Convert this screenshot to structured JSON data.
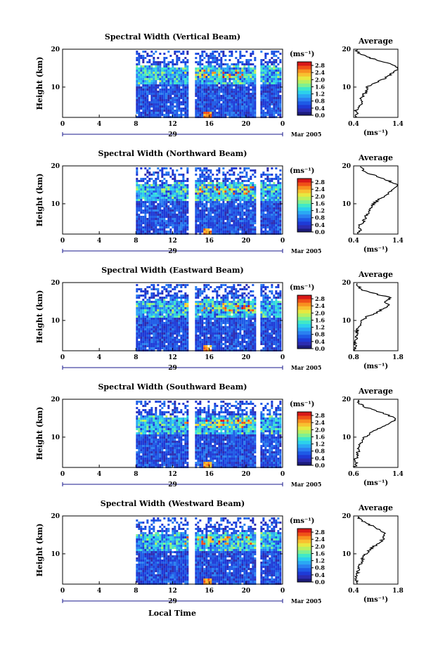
{
  "colorbar_colors": [
    "#1c1c7a",
    "#2c2cb0",
    "#1e3ad6",
    "#1e5ae6",
    "#2a80f0",
    "#2aa8f4",
    "#2cd0ec",
    "#40e8c8",
    "#80f090",
    "#b8f060",
    "#e8e840",
    "#f8c030",
    "#f89020",
    "#f05018",
    "#d81818"
  ],
  "chart_data": [
    {
      "type": "heatmap",
      "title": "Spectral Width (Vertical Beam)",
      "ylabel": "Height (km)",
      "xlabel": "",
      "x_ticks": [
        "0",
        "4",
        "8",
        "12",
        "16",
        "20",
        "0"
      ],
      "date_label": "29",
      "date_right": "Mar 2005",
      "y_ticks": [
        "20",
        "10"
      ],
      "xlim": [
        0,
        24
      ],
      "ylim": [
        2,
        20
      ],
      "data_start_hour": 8,
      "gap_hours": [
        14,
        21.2
      ],
      "colorbar": {
        "unit": "(ms⁻¹)",
        "ticks": [
          "2.8",
          "2.4",
          "2.0",
          "1.6",
          "1.2",
          "0.8",
          "0.4",
          "0.0"
        ],
        "range": [
          0,
          3.0
        ]
      },
      "average": {
        "title": "Average",
        "xlabel": "(ms⁻¹)",
        "x_ticks": [
          "0.4",
          "1.4"
        ],
        "y_ticks": [
          "20",
          "10"
        ],
        "xlim": [
          0.4,
          1.4
        ],
        "ylim": [
          2,
          20
        ],
        "heights": [
          2,
          3,
          4,
          5,
          6,
          7,
          8,
          9,
          10,
          11,
          12,
          13,
          14,
          15,
          16,
          17,
          18,
          19,
          20
        ],
        "values": [
          0.42,
          0.5,
          0.45,
          0.55,
          0.6,
          0.58,
          0.62,
          0.7,
          0.72,
          0.85,
          1.05,
          1.2,
          1.3,
          1.42,
          1.25,
          0.95,
          0.7,
          0.5,
          0.45
        ]
      }
    },
    {
      "type": "heatmap",
      "title": "Spectral Width (Northward Beam)",
      "ylabel": "Height (km)",
      "xlabel": "",
      "x_ticks": [
        "0",
        "4",
        "8",
        "12",
        "16",
        "20",
        "0"
      ],
      "date_label": "29",
      "date_right": "Mar 2005",
      "y_ticks": [
        "20",
        "10"
      ],
      "xlim": [
        0,
        24
      ],
      "ylim": [
        2,
        20
      ],
      "data_start_hour": 8,
      "gap_hours": [
        14,
        21.2
      ],
      "colorbar": {
        "unit": "(ms⁻¹)",
        "ticks": [
          "2.8",
          "2.4",
          "2.0",
          "1.6",
          "1.2",
          "0.8",
          "0.4",
          "0.0"
        ],
        "range": [
          0,
          3.0
        ]
      },
      "average": {
        "title": "Average",
        "xlabel": "(ms⁻¹)",
        "x_ticks": [
          "0.4",
          "1.4"
        ],
        "y_ticks": [
          "20",
          "10"
        ],
        "xlim": [
          0.4,
          1.4
        ],
        "ylim": [
          2,
          20
        ],
        "heights": [
          2,
          3,
          4,
          5,
          6,
          7,
          8,
          9,
          10,
          11,
          12,
          13,
          14,
          15,
          16,
          17,
          18,
          19,
          20
        ],
        "values": [
          0.5,
          0.55,
          0.5,
          0.6,
          0.65,
          0.7,
          0.75,
          0.8,
          0.85,
          0.95,
          1.1,
          1.2,
          1.3,
          1.38,
          1.2,
          1.0,
          0.75,
          0.6,
          0.55
        ]
      }
    },
    {
      "type": "heatmap",
      "title": "Spectral Width (Eastward Beam)",
      "ylabel": "Height (km)",
      "xlabel": "",
      "x_ticks": [
        "0",
        "4",
        "8",
        "12",
        "16",
        "20",
        "0"
      ],
      "date_label": "29",
      "date_right": "Mar 2005",
      "y_ticks": [
        "20",
        "10"
      ],
      "xlim": [
        0,
        24
      ],
      "ylim": [
        2,
        20
      ],
      "data_start_hour": 8,
      "gap_hours": [
        14,
        21.2
      ],
      "colorbar": {
        "unit": "(ms⁻¹)",
        "ticks": [
          "2.8",
          "2.4",
          "2.0",
          "1.6",
          "1.2",
          "0.8",
          "0.4",
          "0.0"
        ],
        "range": [
          0,
          3.0
        ]
      },
      "average": {
        "title": "Average",
        "xlabel": "(ms⁻¹)",
        "x_ticks": [
          "0.8",
          "1.8"
        ],
        "y_ticks": [
          "20",
          "10"
        ],
        "xlim": [
          0.8,
          1.8
        ],
        "ylim": [
          2,
          20
        ],
        "heights": [
          2,
          3,
          4,
          5,
          6,
          7,
          8,
          9,
          10,
          11,
          12,
          13,
          14,
          15,
          16,
          17,
          18,
          19,
          20
        ],
        "values": [
          0.82,
          0.85,
          0.83,
          0.86,
          0.88,
          0.87,
          0.9,
          0.95,
          1.0,
          1.1,
          1.3,
          1.45,
          1.6,
          1.5,
          1.65,
          1.3,
          1.0,
          0.9,
          0.88
        ]
      }
    },
    {
      "type": "heatmap",
      "title": "Spectral Width (Southward Beam)",
      "ylabel": "Height (km)",
      "xlabel": "",
      "x_ticks": [
        "0",
        "4",
        "8",
        "12",
        "16",
        "20",
        "0"
      ],
      "date_label": "29",
      "date_right": "Mar 2005",
      "y_ticks": [
        "20",
        "10"
      ],
      "xlim": [
        0,
        24
      ],
      "ylim": [
        2,
        20
      ],
      "data_start_hour": 8,
      "gap_hours": [
        14,
        21.2
      ],
      "colorbar": {
        "unit": "(ms⁻¹)",
        "ticks": [
          "2.8",
          "2.4",
          "2.0",
          "1.6",
          "1.2",
          "0.8",
          "0.4",
          "0.0"
        ],
        "range": [
          0,
          3.0
        ]
      },
      "average": {
        "title": "Average",
        "xlabel": "(ms⁻¹)",
        "x_ticks": [
          "0.6",
          "1.4"
        ],
        "y_ticks": [
          "20",
          "10"
        ],
        "xlim": [
          0.6,
          1.4
        ],
        "ylim": [
          2,
          20
        ],
        "heights": [
          2,
          3,
          4,
          5,
          6,
          7,
          8,
          9,
          10,
          11,
          12,
          13,
          14,
          15,
          16,
          17,
          18,
          19,
          20
        ],
        "values": [
          0.62,
          0.65,
          0.63,
          0.66,
          0.68,
          0.7,
          0.72,
          0.75,
          0.8,
          0.9,
          1.0,
          1.15,
          1.3,
          1.35,
          1.2,
          1.0,
          0.8,
          0.7,
          0.66
        ]
      }
    },
    {
      "type": "heatmap",
      "title": "Spectral Width (Westward Beam)",
      "ylabel": "Height (km)",
      "xlabel": "Local Time",
      "x_ticks": [
        "0",
        "4",
        "8",
        "12",
        "16",
        "20",
        "0"
      ],
      "date_label": "29",
      "date_right": "Mar 2005",
      "y_ticks": [
        "20",
        "10"
      ],
      "xlim": [
        0,
        24
      ],
      "ylim": [
        2,
        20
      ],
      "data_start_hour": 8,
      "gap_hours": [
        14,
        21.2
      ],
      "colorbar": {
        "unit": "(ms⁻¹)",
        "ticks": [
          "2.8",
          "2.4",
          "2.0",
          "1.6",
          "1.2",
          "0.8",
          "0.4",
          "0.0"
        ],
        "range": [
          0,
          3.0
        ]
      },
      "average": {
        "title": "Average",
        "xlabel": "(ms⁻¹)",
        "x_ticks": [
          "0.4",
          "1.8"
        ],
        "y_ticks": [
          "20",
          "10"
        ],
        "xlim": [
          0.4,
          1.8
        ],
        "ylim": [
          2,
          20
        ],
        "heights": [
          2,
          3,
          4,
          5,
          6,
          7,
          8,
          9,
          10,
          11,
          12,
          13,
          14,
          15,
          16,
          17,
          18,
          19,
          20
        ],
        "values": [
          0.45,
          0.5,
          0.48,
          0.52,
          0.55,
          0.6,
          0.65,
          0.7,
          0.8,
          0.9,
          1.05,
          1.2,
          1.35,
          1.4,
          1.3,
          1.1,
          0.8,
          0.6,
          0.5
        ]
      }
    }
  ]
}
